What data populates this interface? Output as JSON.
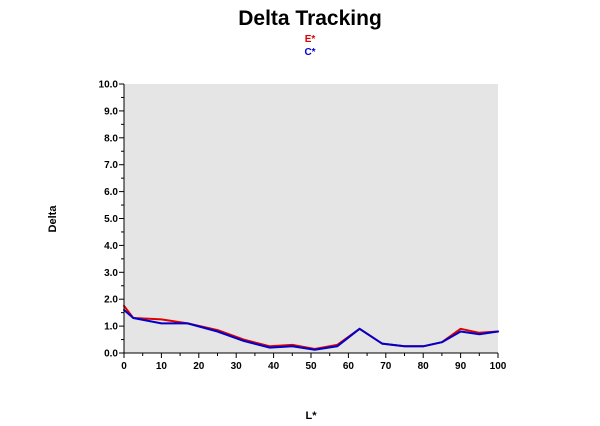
{
  "chart_data": {
    "type": "line",
    "title": "Delta Tracking",
    "xlabel": "L*",
    "ylabel": "Delta",
    "xlim": [
      0,
      100
    ],
    "ylim": [
      0,
      10
    ],
    "x_ticks": [
      "0",
      "10",
      "20",
      "30",
      "40",
      "50",
      "60",
      "70",
      "80",
      "90",
      "100"
    ],
    "y_ticks": [
      "0.0",
      "1.0",
      "2.0",
      "3.0",
      "4.0",
      "5.0",
      "6.0",
      "7.0",
      "8.0",
      "9.0",
      "10.0"
    ],
    "grid": false,
    "legend_position": "top-center",
    "background_color": "#e5e5e5",
    "series": [
      {
        "name": "E*",
        "color": "#dd0000",
        "x": [
          0,
          2.5,
          10,
          17,
          25,
          32,
          39,
          45,
          51,
          57,
          63,
          69,
          75,
          80,
          85,
          90,
          95,
          100
        ],
        "y": [
          1.75,
          1.3,
          1.25,
          1.1,
          0.85,
          0.5,
          0.25,
          0.3,
          0.15,
          0.3,
          0.9,
          0.35,
          0.25,
          0.25,
          0.4,
          0.9,
          0.75,
          0.8
        ]
      },
      {
        "name": "C*",
        "color": "#0000cc",
        "x": [
          0,
          2.5,
          10,
          17,
          25,
          32,
          39,
          45,
          51,
          57,
          63,
          69,
          75,
          80,
          85,
          90,
          95,
          100
        ],
        "y": [
          1.6,
          1.3,
          1.1,
          1.1,
          0.8,
          0.45,
          0.2,
          0.25,
          0.12,
          0.25,
          0.9,
          0.35,
          0.25,
          0.25,
          0.4,
          0.8,
          0.7,
          0.8
        ]
      }
    ]
  }
}
